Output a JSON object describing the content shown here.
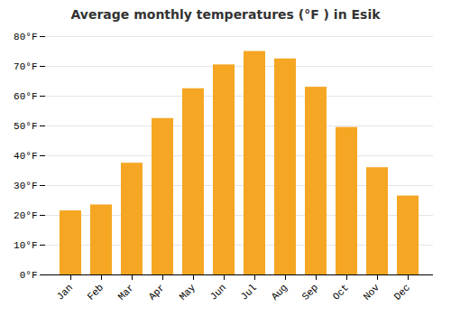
{
  "chart_data": {
    "type": "bar",
    "title": "Average monthly temperatures (°F ) in Esik",
    "categories": [
      "Jan",
      "Feb",
      "Mar",
      "Apr",
      "May",
      "Jun",
      "Jul",
      "Aug",
      "Sep",
      "Oct",
      "Nov",
      "Dec"
    ],
    "values": [
      21.5,
      23.5,
      37.5,
      52.5,
      62.5,
      70.5,
      75.0,
      72.5,
      63.0,
      49.5,
      36.0,
      26.5
    ],
    "color": "#F5A623",
    "ylim": [
      0,
      80
    ],
    "yticks": [
      {
        "value": 0,
        "label": "0°F"
      },
      {
        "value": 10,
        "label": "10°F"
      },
      {
        "value": 20,
        "label": "20°F"
      },
      {
        "value": 30,
        "label": "30°F"
      },
      {
        "value": 40,
        "label": "40°F"
      },
      {
        "value": 50,
        "label": "50°F"
      },
      {
        "value": 60,
        "label": "60°F"
      },
      {
        "value": 70,
        "label": "70°F"
      },
      {
        "value": 80,
        "label": "80°F"
      }
    ],
    "grid": true
  }
}
